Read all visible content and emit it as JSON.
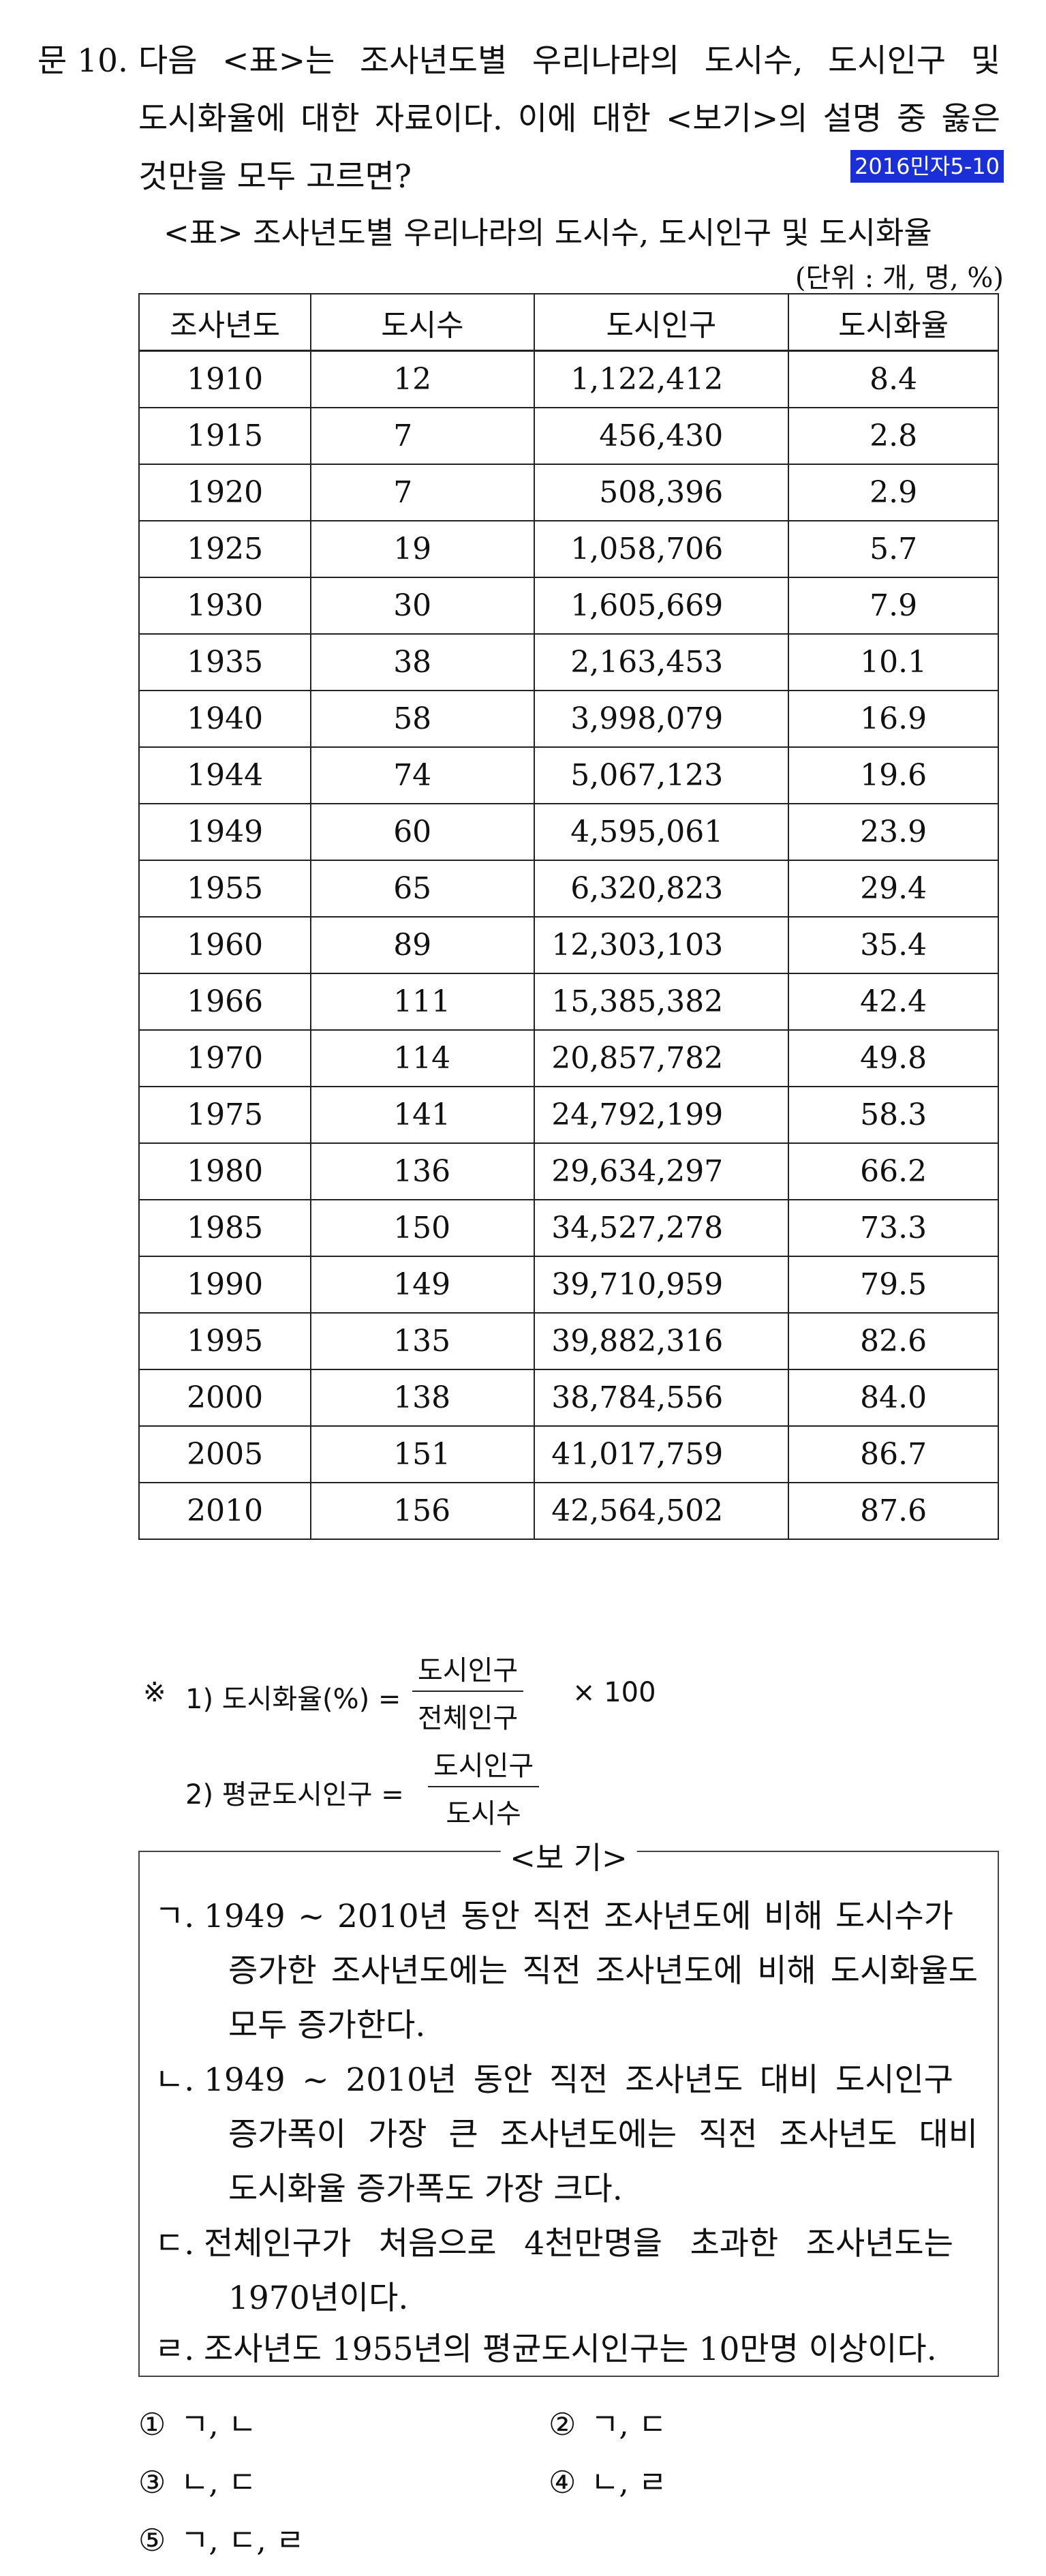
{
  "question": {
    "number": "문 10.",
    "line1": "다음 <표>는 조사년도별 우리나라의 도시수, 도시인구 및",
    "line2": "도시화율에 대한 자료이다. 이에 대한 <보기>의 설명 중 옳은",
    "line3": "것만을 모두 고르면?",
    "source_tag": "2016민자5-10"
  },
  "table": {
    "title": "<표> 조사년도별 우리나라의 도시수, 도시인구 및 도시화율",
    "unit": "(단위 : 개, 명, %)",
    "headers": [
      "조사년도",
      "도시수",
      "도시인구",
      "도시화율"
    ],
    "rows": [
      [
        "1910",
        "12",
        "1,122,412",
        "8.4"
      ],
      [
        "1915",
        "7",
        "456,430",
        "2.8"
      ],
      [
        "1920",
        "7",
        "508,396",
        "2.9"
      ],
      [
        "1925",
        "19",
        "1,058,706",
        "5.7"
      ],
      [
        "1930",
        "30",
        "1,605,669",
        "7.9"
      ],
      [
        "1935",
        "38",
        "2,163,453",
        "10.1"
      ],
      [
        "1940",
        "58",
        "3,998,079",
        "16.9"
      ],
      [
        "1944",
        "74",
        "5,067,123",
        "19.6"
      ],
      [
        "1949",
        "60",
        "4,595,061",
        "23.9"
      ],
      [
        "1955",
        "65",
        "6,320,823",
        "29.4"
      ],
      [
        "1960",
        "89",
        "12,303,103",
        "35.4"
      ],
      [
        "1966",
        "111",
        "15,385,382",
        "42.4"
      ],
      [
        "1970",
        "114",
        "20,857,782",
        "49.8"
      ],
      [
        "1975",
        "141",
        "24,792,199",
        "58.3"
      ],
      [
        "1980",
        "136",
        "29,634,297",
        "66.2"
      ],
      [
        "1985",
        "150",
        "34,527,278",
        "73.3"
      ],
      [
        "1990",
        "149",
        "39,710,959",
        "79.5"
      ],
      [
        "1995",
        "135",
        "39,882,316",
        "82.6"
      ],
      [
        "2000",
        "138",
        "38,784,556",
        "84.0"
      ],
      [
        "2005",
        "151",
        "41,017,759",
        "86.7"
      ],
      [
        "2010",
        "156",
        "42,564,502",
        "87.6"
      ]
    ]
  },
  "notes": {
    "mark": "※",
    "n1": {
      "label": "1) 도시화율(%) =",
      "numerator": "도시인구",
      "denominator": "전체인구",
      "suffix": "× 100"
    },
    "n2": {
      "label": "2) 평균도시인구 =",
      "numerator": "도시인구",
      "denominator": "도시수"
    }
  },
  "bogi": {
    "title": "<보 기>",
    "items": [
      {
        "marker": "ㄱ.",
        "lines": [
          "1949 ~ 2010년 동안 직전 조사년도에 비해 도시수가",
          "증가한 조사년도에는 직전 조사년도에 비해 도시화율도",
          "모두 증가한다."
        ]
      },
      {
        "marker": "ㄴ.",
        "lines": [
          "1949 ~ 2010년 동안 직전 조사년도 대비 도시인구",
          "증가폭이 가장 큰 조사년도에는 직전 조사년도 대비",
          "도시화율 증가폭도 가장 크다."
        ]
      },
      {
        "marker": "ㄷ.",
        "lines": [
          "전체인구가 처음으로 4천만명을 초과한 조사년도는",
          "1970년이다."
        ]
      },
      {
        "marker": "ㄹ.",
        "lines": [
          "조사년도 1955년의 평균도시인구는 10만명 이상이다."
        ]
      }
    ]
  },
  "options": [
    {
      "num": "①",
      "text": "ㄱ, ㄴ"
    },
    {
      "num": "②",
      "text": "ㄱ, ㄷ"
    },
    {
      "num": "③",
      "text": "ㄴ, ㄷ"
    },
    {
      "num": "④",
      "text": "ㄴ, ㄹ"
    },
    {
      "num": "⑤",
      "text": "ㄱ, ㄷ, ㄹ"
    }
  ]
}
